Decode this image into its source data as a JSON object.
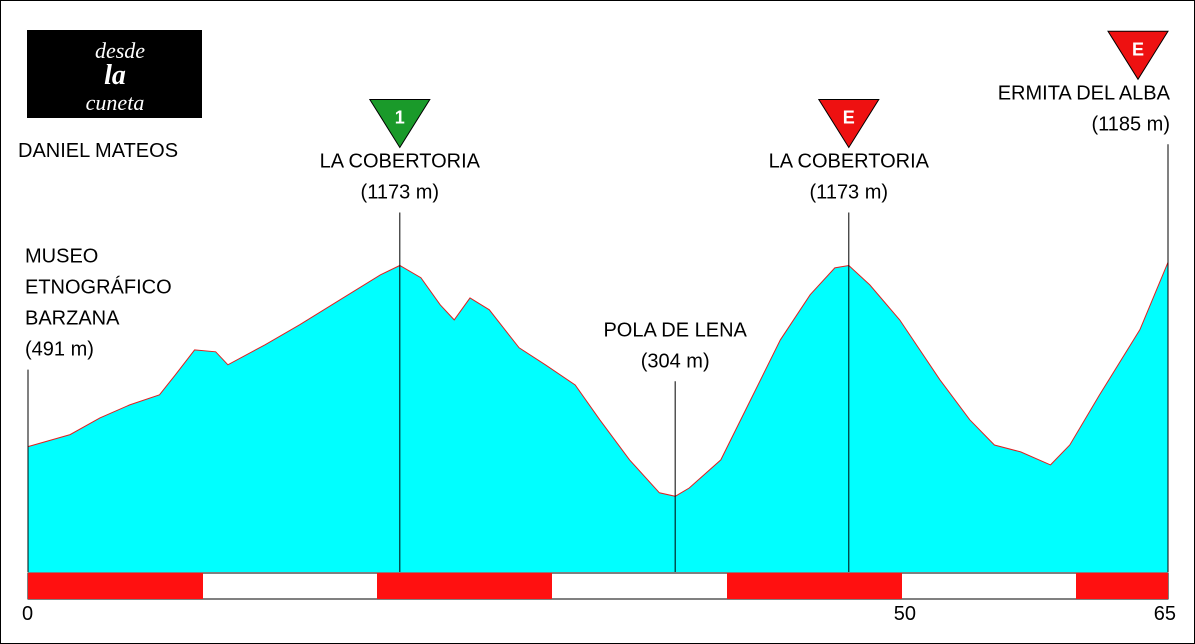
{
  "chart_data": {
    "type": "area",
    "logo_text": [
      "desde",
      "la",
      "cuneta"
    ],
    "author": "DANIEL MATEOS",
    "xlim": [
      0,
      65
    ],
    "xticks": [
      0,
      50,
      65
    ],
    "ylim": [
      0,
      2150
    ],
    "series": [
      {
        "color": "#00ffff",
        "line_color": "#e02020",
        "x": [
          0,
          2.4,
          4.1,
          5.8,
          7.5,
          8.4,
          9.5,
          10.7,
          11.4,
          13.5,
          15.5,
          17.8,
          20.1,
          21.2,
          22.4,
          23.5,
          24.3,
          25.2,
          26.3,
          28.0,
          29.5,
          31.2,
          32.6,
          34.3,
          36.0,
          36.9,
          37.7,
          39.5,
          41.2,
          42.9,
          44.6,
          46.0,
          46.8,
          48.0,
          49.7,
          52.0,
          53.7,
          55.1,
          56.6,
          58.3,
          59.4,
          61.1,
          63.4,
          65
        ],
        "values": [
          491,
          536,
          599,
          648,
          686,
          761,
          855,
          848,
          799,
          874,
          950,
          1044,
          1138,
          1173,
          1127,
          1025,
          968,
          1051,
          1006,
          863,
          799,
          723,
          592,
          441,
          317,
          304,
          335,
          441,
          667,
          893,
          1063,
          1164,
          1173,
          1100,
          968,
          742,
          592,
          497,
          471,
          422,
          497,
          686,
          931,
          1185
        ]
      }
    ],
    "annotations": [
      {
        "x": 0,
        "y": 491,
        "text": [
          "MUSEO",
          "ETNOGRÁFICO",
          "BARZANA"
        ],
        "value_label": "(491 m)"
      },
      {
        "x": 21.2,
        "y": 1173,
        "text": [
          "LA COBERTORIA"
        ],
        "value_label": "(1173 m)",
        "icon": {
          "text": "1",
          "color": "#1a9a2a"
        }
      },
      {
        "x": 36.9,
        "y": 304,
        "text": [
          "POLA DE LENA"
        ],
        "value_label": "(304 m)"
      },
      {
        "x": 46.8,
        "y": 1173,
        "text": [
          "LA COBERTORIA"
        ],
        "value_label": "(1173 m)",
        "icon": {
          "text": "E",
          "color": "#ee1111"
        }
      },
      {
        "x": 65,
        "y": 1185,
        "text": [
          "ERMITA DEL ALBA"
        ],
        "value_label": "(1185 m)",
        "icon": {
          "text": "E",
          "color": "#ee1111"
        }
      }
    ]
  }
}
